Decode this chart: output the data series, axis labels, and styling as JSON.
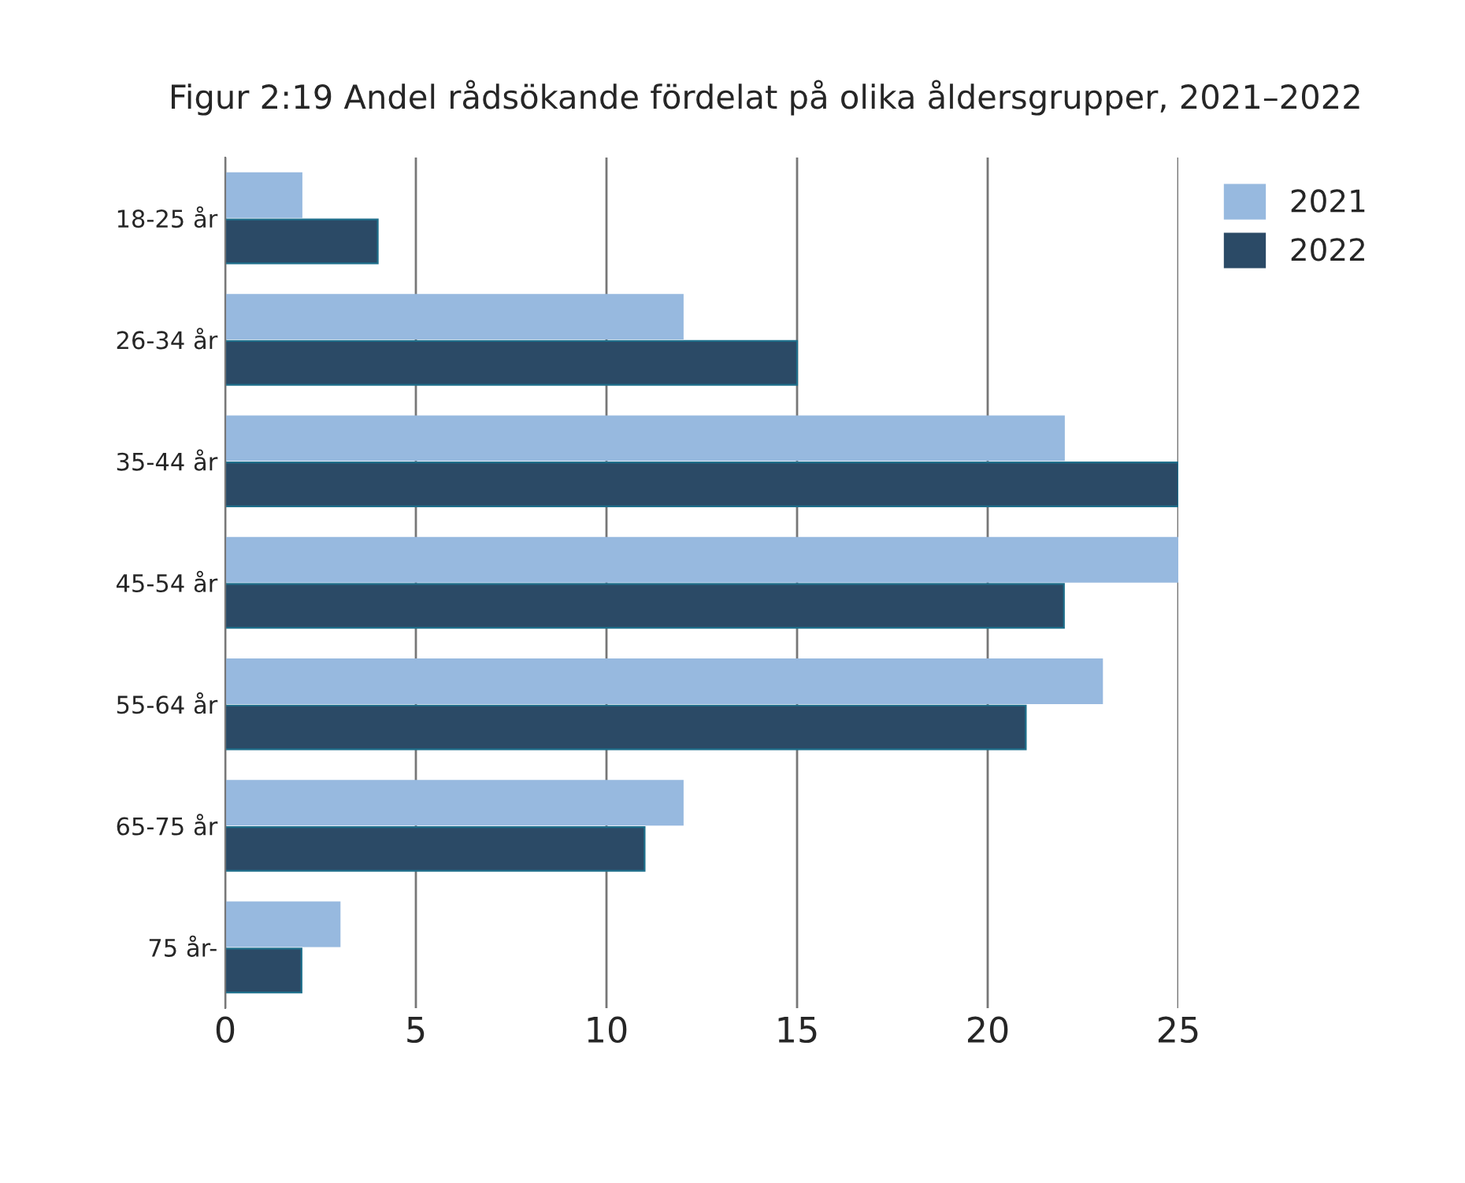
{
  "chart_data": {
    "type": "bar",
    "orientation": "horizontal",
    "title": "Figur 2:19 Andel rådsökande fördelat på olika åldersgrupper, 2021–2022",
    "categories": [
      "18-25 år",
      "26-34 år",
      "35-44 år",
      "45-54 år",
      "55-64 år",
      "65-75 år",
      "75 år-"
    ],
    "series": [
      {
        "name": "2021",
        "color": "#97b9df",
        "values": [
          2,
          12,
          22,
          25,
          23,
          12,
          3
        ]
      },
      {
        "name": "2022",
        "color": "#2b4a66",
        "values": [
          4,
          15,
          25,
          22,
          21,
          11,
          2
        ]
      }
    ],
    "xlim": [
      0,
      25
    ],
    "xticks": [
      0,
      5,
      10,
      15,
      20,
      25
    ],
    "grid": "x",
    "legend": "top right"
  }
}
